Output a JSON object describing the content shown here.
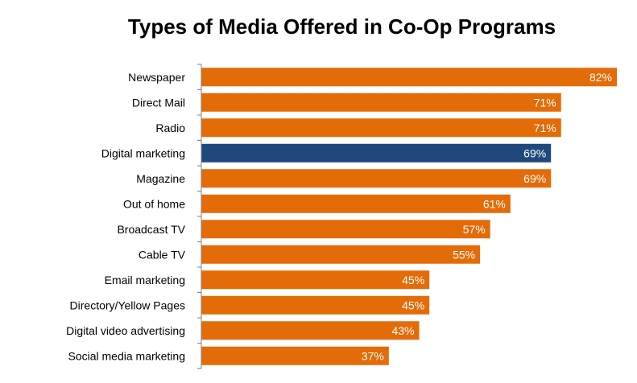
{
  "chart_data": {
    "type": "bar",
    "orientation": "horizontal",
    "title": "Types of Media Offered in Co-Op Programs",
    "categories": [
      "Newspaper",
      "Direct Mail",
      "Radio",
      "Digital marketing",
      "Magazine",
      "Out of home",
      "Broadcast TV",
      "Cable TV",
      "Email marketing",
      "Directory/Yellow Pages",
      "Digital video advertising",
      "Social media marketing"
    ],
    "values": [
      82,
      71,
      71,
      69,
      69,
      61,
      57,
      55,
      45,
      45,
      43,
      37
    ],
    "value_labels": [
      "82%",
      "71%",
      "71%",
      "69%",
      "69%",
      "61%",
      "57%",
      "55%",
      "45%",
      "45%",
      "43%",
      "37%"
    ],
    "highlight_index": 3,
    "xlim": [
      0,
      82
    ],
    "grid": false,
    "legend": "none",
    "colors": {
      "bar": "#E36C09",
      "highlight": "#1F497D",
      "axis": "#7F7F7F",
      "label_text": "#FFFFFF"
    }
  }
}
